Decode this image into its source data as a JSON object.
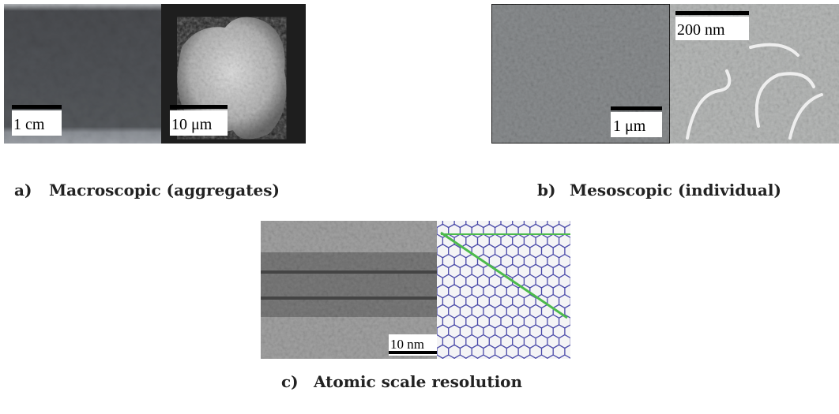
{
  "panels": [
    {
      "label": "a)",
      "caption": "Macroscopic (aggregates)",
      "scale_bars": [
        "1 cm",
        "10 μm"
      ]
    },
    {
      "label": "b)",
      "caption": "Mesoscopic (individual)",
      "scale_bars": [
        "1 μm",
        "200 nm"
      ]
    },
    {
      "label": "c)",
      "caption": "Atomic scale resolution",
      "scale_bars": [
        "10 nm"
      ]
    }
  ]
}
